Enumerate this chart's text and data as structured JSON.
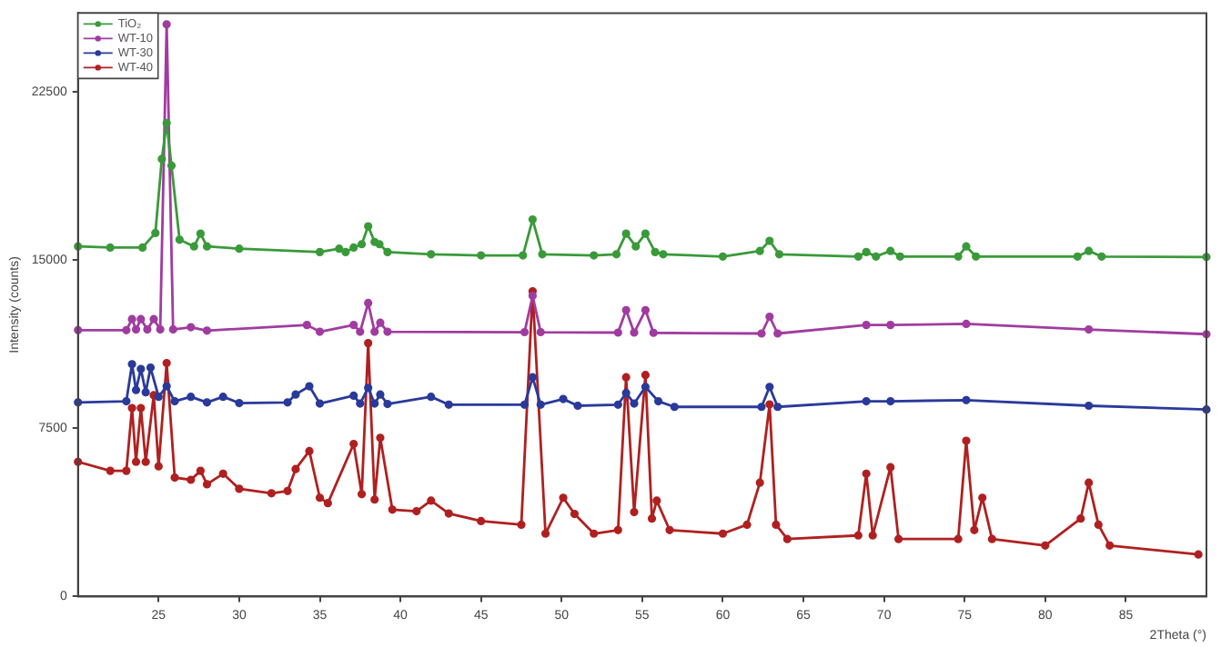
{
  "chart_data": {
    "type": "line",
    "xlabel": "2Theta (°)",
    "ylabel": "Intensity (counts)",
    "xlim": [
      20,
      90
    ],
    "ylim": [
      0,
      26000
    ],
    "xticks": [
      25,
      30,
      35,
      40,
      45,
      50,
      55,
      60,
      65,
      70,
      75,
      80,
      85
    ],
    "yticks": [
      0,
      7500,
      15000,
      22500
    ],
    "grid": false,
    "legend": "top left",
    "marker": "circle",
    "line_style": "solid",
    "series": [
      {
        "name": "TiO₂",
        "color": "#3a9a3a",
        "x": [
          20,
          22,
          24,
          24.8,
          25.2,
          25.5,
          25.8,
          26.3,
          27.2,
          27.6,
          28,
          30,
          35,
          36.2,
          36.6,
          37.1,
          37.6,
          38,
          38.4,
          38.7,
          39.2,
          41.9,
          45,
          47.6,
          48.2,
          48.8,
          52,
          53.4,
          54,
          54.6,
          55.2,
          55.8,
          56.3,
          60,
          62.3,
          62.9,
          63.5,
          68.4,
          68.9,
          69.5,
          70.4,
          71,
          74.6,
          75.1,
          75.7,
          82,
          82.7,
          83.5,
          90
        ],
        "values": [
          15600,
          15550,
          15550,
          16200,
          19500,
          21100,
          19200,
          15900,
          15600,
          16170,
          15600,
          15500,
          15350,
          15500,
          15350,
          15550,
          15700,
          16500,
          15800,
          15700,
          15350,
          15250,
          15200,
          15200,
          16800,
          15250,
          15200,
          15250,
          16170,
          15600,
          16170,
          15350,
          15250,
          15150,
          15400,
          15850,
          15250,
          15150,
          15350,
          15150,
          15400,
          15150,
          15150,
          15600,
          15150,
          15150,
          15400,
          15150,
          15130
        ]
      },
      {
        "name": "WT-10",
        "color": "#a03ca0",
        "x": [
          20,
          23,
          23.35,
          23.6,
          23.9,
          24.3,
          24.7,
          25.1,
          25.5,
          25.9,
          27,
          28,
          34.2,
          35,
          37.1,
          37.5,
          38,
          38.4,
          38.75,
          39.2,
          47.7,
          48.2,
          48.7,
          53.5,
          54,
          54.5,
          55.2,
          55.7,
          62.4,
          62.9,
          63.4,
          68.9,
          70.4,
          75.1,
          82.7,
          90
        ],
        "values": [
          11870,
          11870,
          12360,
          11900,
          12360,
          11900,
          12360,
          11900,
          25500,
          11900,
          12000,
          11850,
          12100,
          11800,
          12100,
          11800,
          13080,
          11800,
          12200,
          11800,
          11780,
          13400,
          11780,
          11760,
          12760,
          11760,
          12760,
          11750,
          11720,
          12470,
          11720,
          12100,
          12100,
          12150,
          11900,
          11690
        ]
      },
      {
        "name": "WT-30",
        "color": "#2a3a9a",
        "x": [
          20,
          23,
          23.35,
          23.6,
          23.9,
          24.2,
          24.5,
          25,
          25.5,
          26,
          27,
          28,
          29,
          30,
          33,
          33.5,
          34.35,
          35,
          37.1,
          37.5,
          38,
          38.4,
          38.75,
          39.2,
          41.9,
          43,
          47.7,
          48.2,
          48.7,
          50.1,
          51,
          53.5,
          54,
          54.5,
          55.2,
          56,
          57,
          62.4,
          62.9,
          63.4,
          68.9,
          70.4,
          75.1,
          82.7,
          90
        ],
        "values": [
          8650,
          8700,
          10350,
          9200,
          10140,
          9100,
          10200,
          8900,
          9370,
          8700,
          8900,
          8650,
          8900,
          8620,
          8650,
          9000,
          9370,
          8600,
          8950,
          8600,
          9300,
          8600,
          9000,
          8580,
          8900,
          8550,
          8550,
          9770,
          8550,
          8800,
          8500,
          8550,
          9070,
          8600,
          9340,
          8700,
          8450,
          8450,
          9340,
          8450,
          8700,
          8700,
          8750,
          8500,
          8330
        ]
      },
      {
        "name": "WT-40",
        "color": "#b02020",
        "x": [
          20,
          22,
          23,
          23.35,
          23.6,
          23.9,
          24.2,
          24.7,
          25,
          25.5,
          26,
          27,
          27.6,
          28,
          29,
          30,
          32,
          33,
          33.5,
          34.35,
          35,
          35.5,
          37.1,
          37.6,
          38,
          38.4,
          38.75,
          39.5,
          41,
          41.9,
          43,
          45,
          47.5,
          48.2,
          49,
          50.1,
          50.8,
          52,
          53.5,
          54,
          54.5,
          55.2,
          55.6,
          55.9,
          56.7,
          60,
          61.5,
          62.3,
          62.9,
          63.3,
          64,
          68.4,
          68.9,
          69.3,
          70.4,
          70.9,
          74.6,
          75.1,
          75.6,
          76.1,
          76.7,
          80,
          82.2,
          82.7,
          83.3,
          84,
          89.5
        ],
        "values": [
          6000,
          5600,
          5600,
          8400,
          6000,
          8400,
          6000,
          8970,
          5800,
          10400,
          5300,
          5200,
          5600,
          5000,
          5470,
          4800,
          4600,
          4700,
          5680,
          6480,
          4400,
          4160,
          6800,
          4560,
          11290,
          4320,
          7070,
          3870,
          3800,
          4270,
          3700,
          3360,
          3200,
          13600,
          2800,
          4400,
          3680,
          2800,
          2960,
          9770,
          3760,
          9870,
          3470,
          4270,
          2960,
          2800,
          3200,
          5070,
          8560,
          3200,
          2560,
          2720,
          5470,
          2720,
          5760,
          2560,
          2560,
          6940,
          2960,
          4400,
          2560,
          2270,
          3470,
          5070,
          3200,
          2270,
          1870
        ]
      }
    ]
  }
}
